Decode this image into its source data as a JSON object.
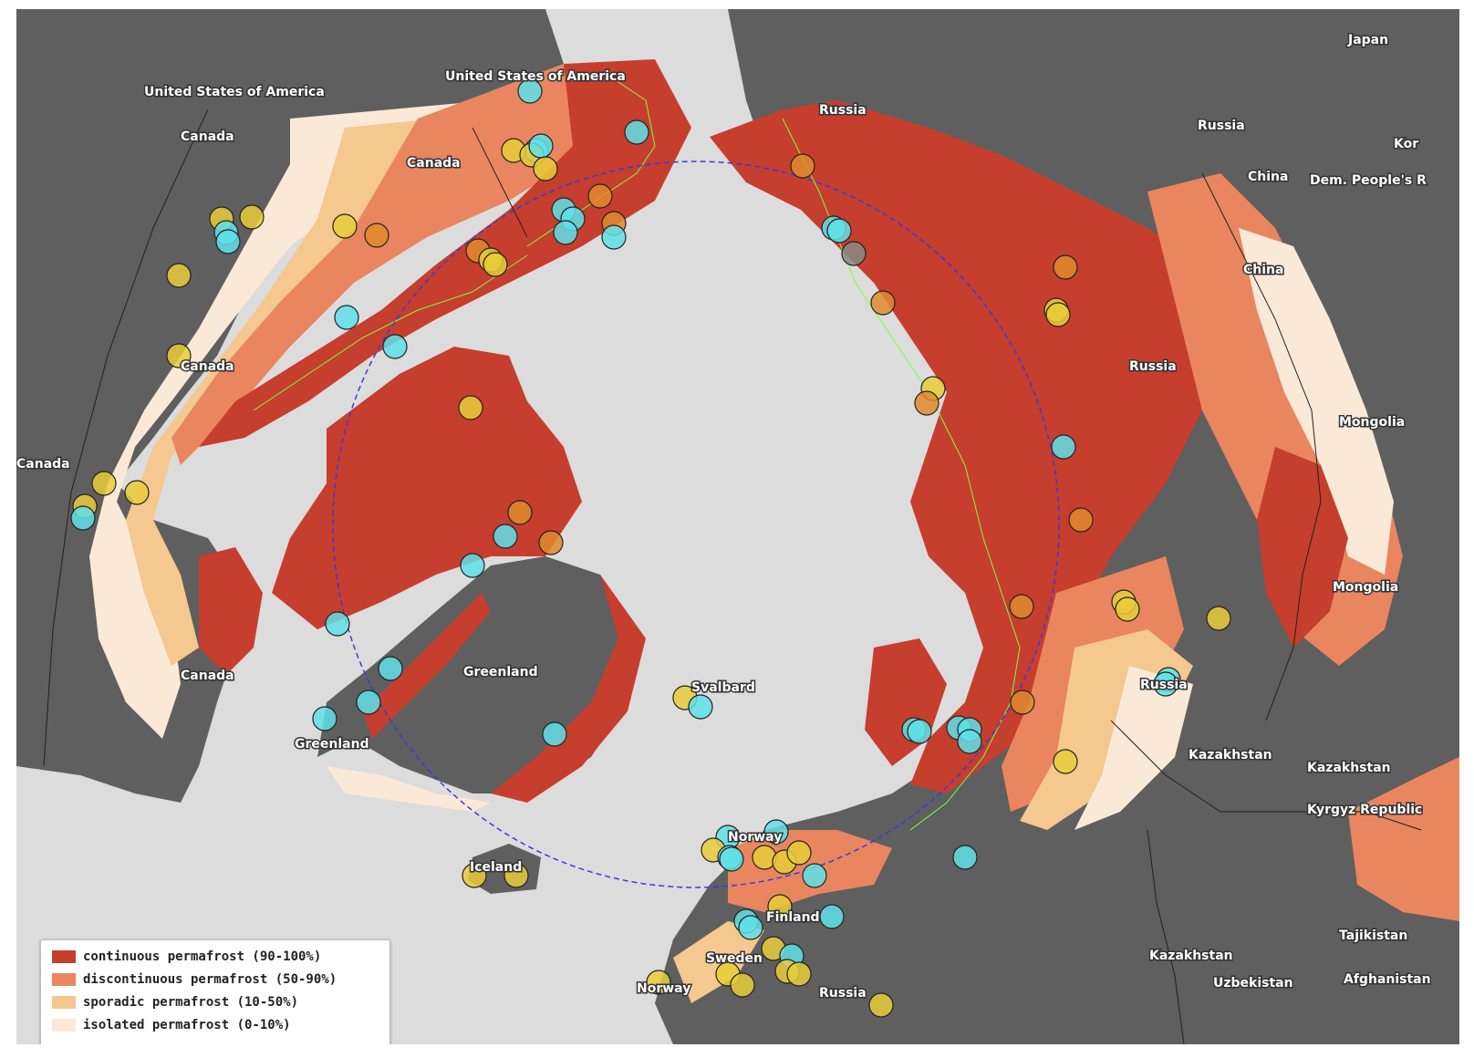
{
  "colors": {
    "ocean": "#dcdcdc",
    "land": "#5f5f5f",
    "continuous": "#c63e2e",
    "discontinuous": "#e9865f",
    "sporadic": "#f4c88e",
    "isolated": "#fbe9d8",
    "border_green": "#7cff3c",
    "arctic_circle": "#3b3bd6",
    "marker_cyan": "#5fe0e8",
    "marker_yellow": "#e8cc3a",
    "marker_orange": "#e08a2e"
  },
  "labels": [
    "United States of America",
    "United States of America",
    "Canada",
    "Canada",
    "Canada",
    "Canada",
    "Canada",
    "Russia",
    "Russia",
    "Russia",
    "Russia",
    "Russia",
    "Japan",
    "Kor",
    "China",
    "China",
    "Dem. People's R",
    "Mongolia",
    "Mongolia",
    "Greenland",
    "Greenland",
    "Svalbard",
    "Iceland",
    "Norway",
    "Norway",
    "Finland",
    "Sweden",
    "Kazakhstan",
    "Kazakhstan",
    "Kazakhstan",
    "Kyrgyz Republic",
    "Tajikistan",
    "Uzbekistan",
    "Afghanistan"
  ],
  "legend": {
    "items": [
      {
        "label": "continuous permafrost (90-100%)",
        "color": "#c63e2e"
      },
      {
        "label": "discontinuous permafrost (50-90%)",
        "color": "#e9865f"
      },
      {
        "label": "sporadic permafrost (10-50%)",
        "color": "#f4c88e"
      },
      {
        "label": "isolated permafrost (0-10%)",
        "color": "#fbe9d8"
      }
    ]
  },
  "marker_types": [
    "cyan",
    "yellow",
    "orange",
    "gray"
  ]
}
